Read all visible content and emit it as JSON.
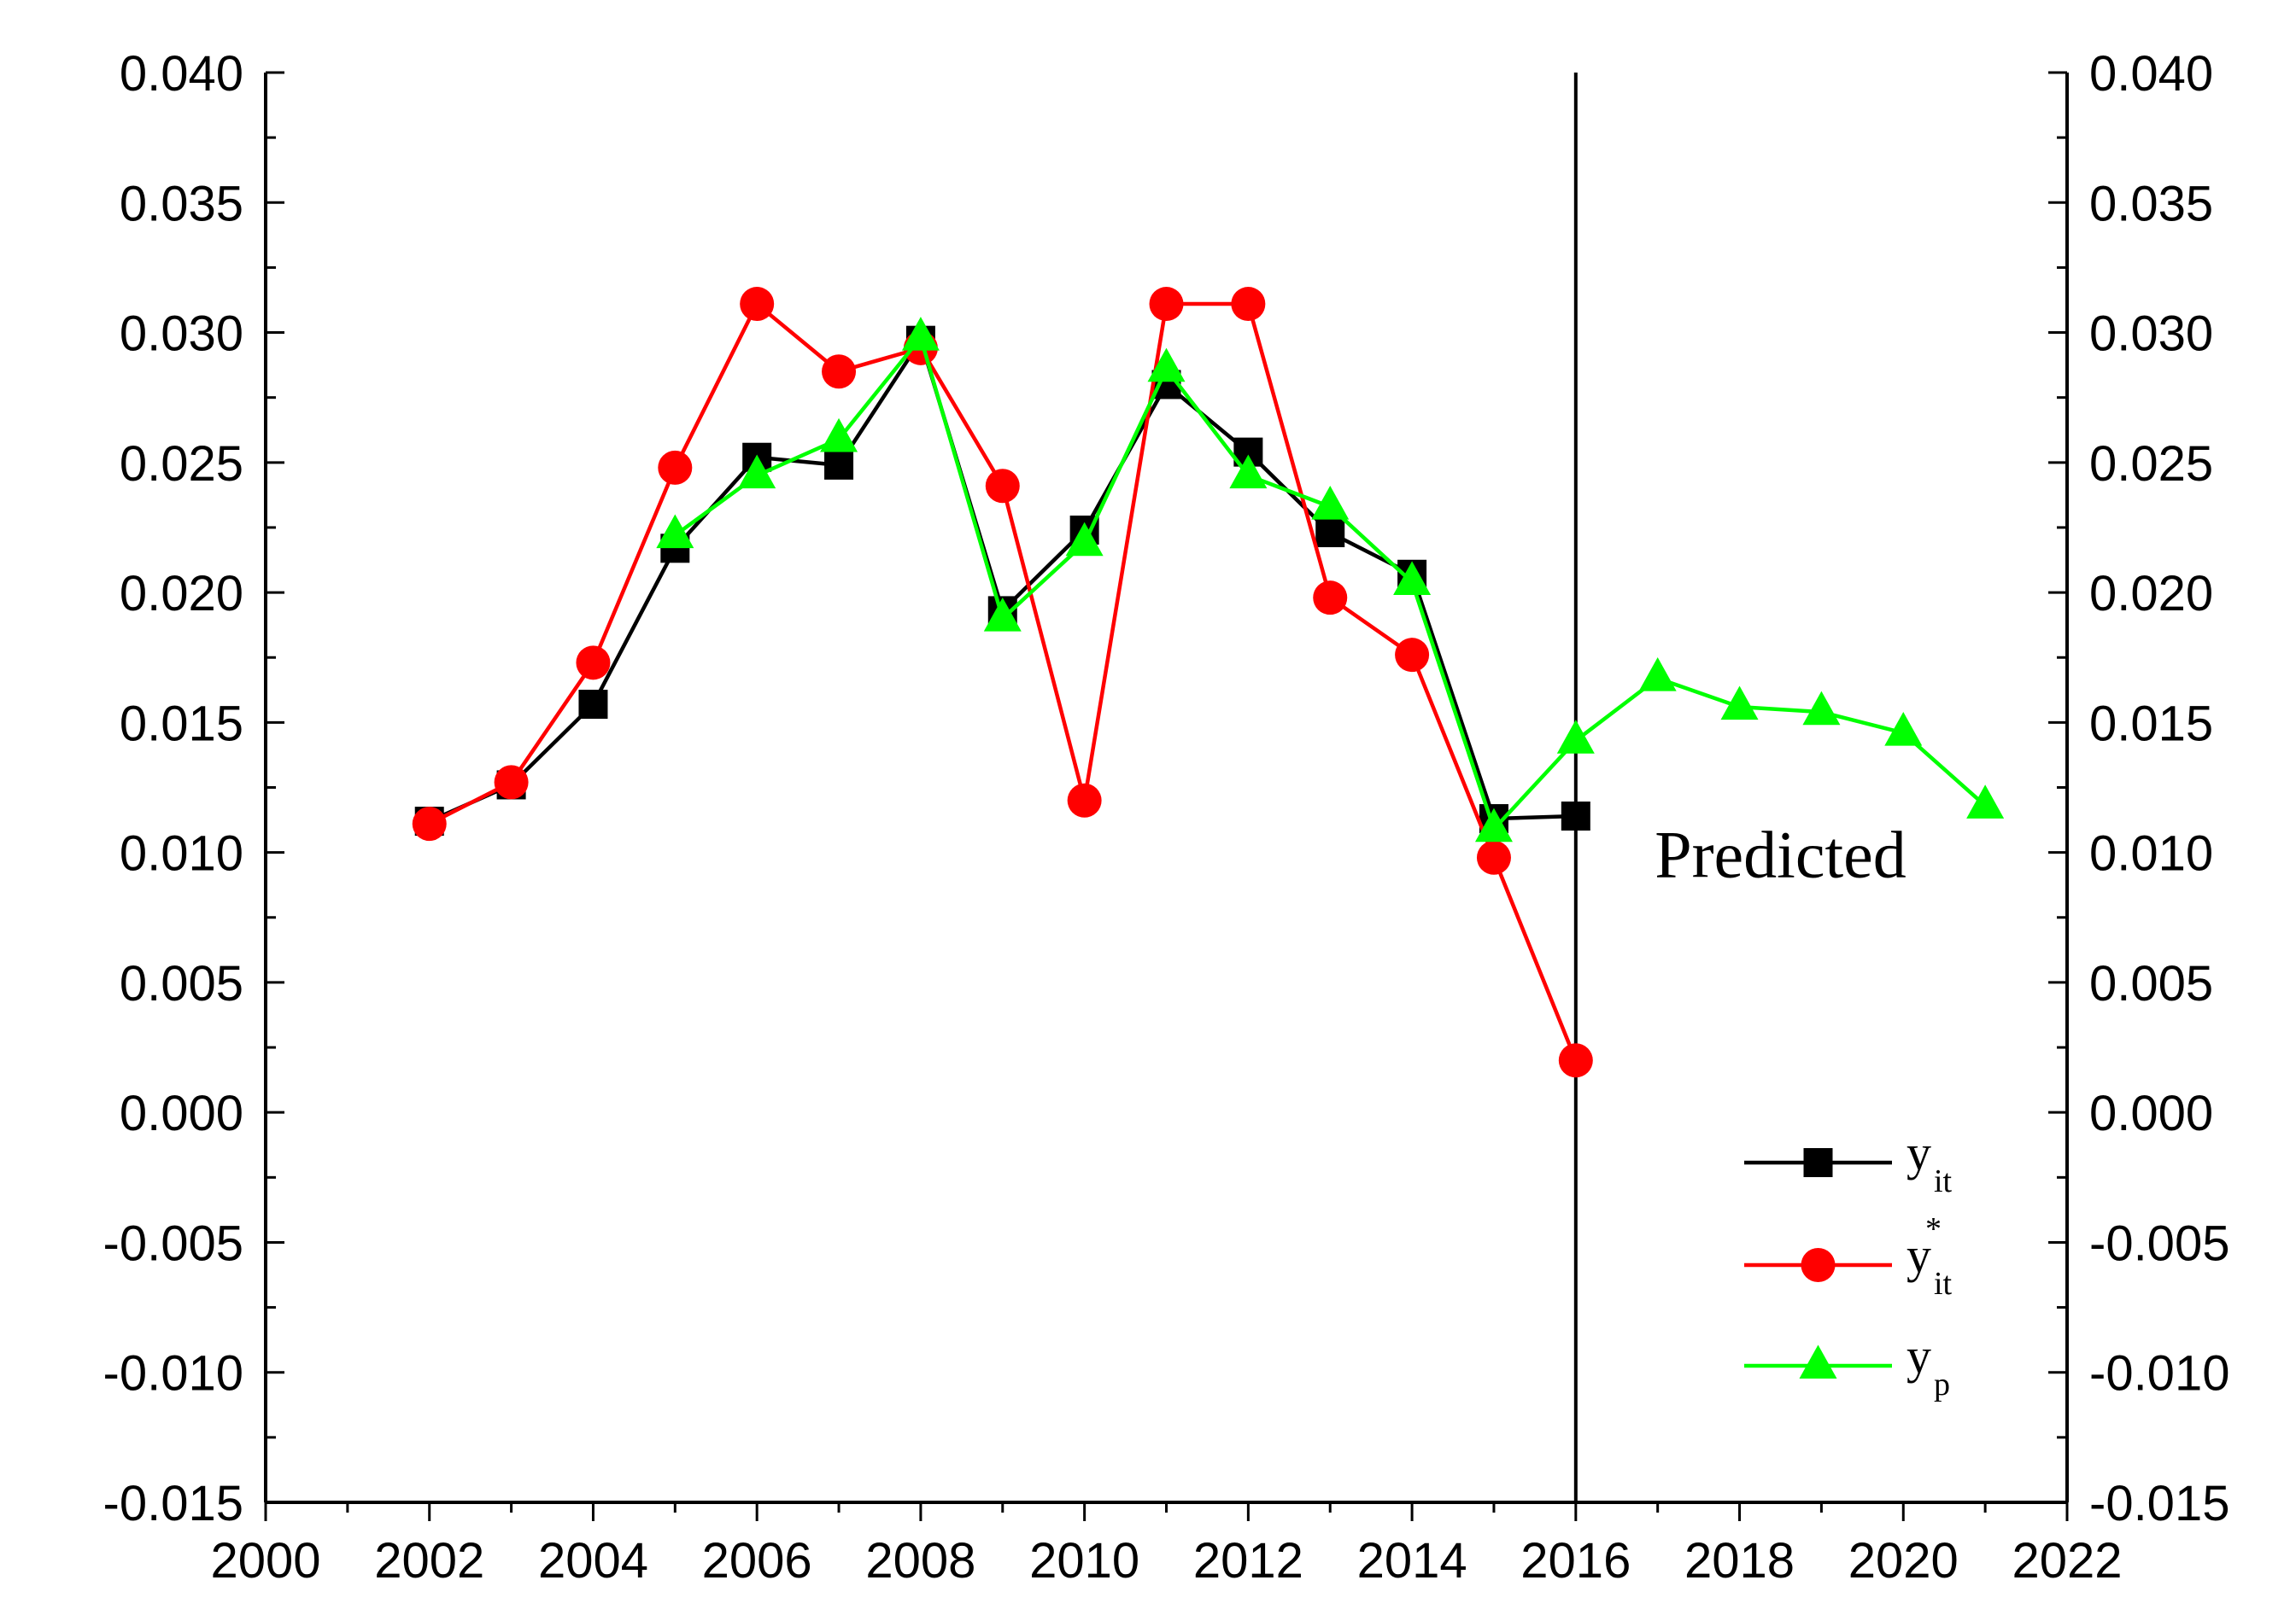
{
  "chart_data": {
    "type": "line",
    "title": "",
    "xlabel": "",
    "ylabel": "",
    "xlim": [
      2000,
      2022
    ],
    "ylim": [
      -0.015,
      0.04
    ],
    "x_ticks": [
      2000,
      2002,
      2004,
      2006,
      2008,
      2010,
      2012,
      2014,
      2016,
      2018,
      2020,
      2022
    ],
    "x_tick_labels": [
      "2000",
      "2002",
      "2004",
      "2006",
      "2008",
      "2010",
      "2012",
      "2014",
      "2016",
      "2018",
      "2020",
      "2022"
    ],
    "y_ticks": [
      -0.015,
      -0.01,
      -0.005,
      0.0,
      0.005,
      0.01,
      0.015,
      0.02,
      0.025,
      0.03,
      0.035,
      0.04
    ],
    "y_tick_labels": [
      "-0.015",
      "-0.010",
      "-0.005",
      "0.000",
      "0.005",
      "0.010",
      "0.015",
      "0.020",
      "0.025",
      "0.030",
      "0.035",
      "0.040"
    ],
    "grid": false,
    "legend_position": "bottom-right",
    "vertical_line_x": 2016,
    "annotations": [
      {
        "text": "Predicted",
        "x": 2018.5,
        "y": 0.0099
      }
    ],
    "series": [
      {
        "name": "y_it",
        "legend_main": "y",
        "legend_sub": "it",
        "legend_sup": "",
        "color": "#000000",
        "marker": "square",
        "x": [
          2002,
          2003,
          2004,
          2005,
          2006,
          2007,
          2008,
          2009,
          2010,
          2011,
          2012,
          2013,
          2014,
          2015,
          2016
        ],
        "values": [
          0.0112,
          0.0126,
          0.0157,
          0.0217,
          0.0252,
          0.0249,
          0.0297,
          0.0193,
          0.0224,
          0.028,
          0.0254,
          0.0223,
          0.0207,
          0.0113,
          0.0114
        ]
      },
      {
        "name": "y*_it",
        "legend_main": "y",
        "legend_sub": "it",
        "legend_sup": "*",
        "color": "#ff0000",
        "marker": "circle",
        "x": [
          2002,
          2003,
          2004,
          2005,
          2006,
          2007,
          2008,
          2009,
          2010,
          2011,
          2012,
          2013,
          2014,
          2015,
          2016
        ],
        "values": [
          0.0111,
          0.0127,
          0.0173,
          0.0248,
          0.0311,
          0.0285,
          0.0294,
          0.0241,
          0.012,
          0.0311,
          0.0311,
          0.0198,
          0.0176,
          0.0098,
          0.002
        ]
      },
      {
        "name": "y_p",
        "legend_main": "y",
        "legend_sub": "p",
        "legend_sup": "",
        "color": "#00ff00",
        "marker": "triangle",
        "x": [
          2005,
          2006,
          2007,
          2008,
          2009,
          2010,
          2011,
          2012,
          2013,
          2014,
          2015,
          2016,
          2017,
          2018,
          2019,
          2020,
          2021
        ],
        "values": [
          0.0222,
          0.0245,
          0.0259,
          0.0298,
          0.019,
          0.0219,
          0.0286,
          0.0245,
          0.0233,
          0.0204,
          0.0109,
          0.0143,
          0.0167,
          0.0156,
          0.0154,
          0.0146,
          0.0118
        ]
      }
    ]
  }
}
